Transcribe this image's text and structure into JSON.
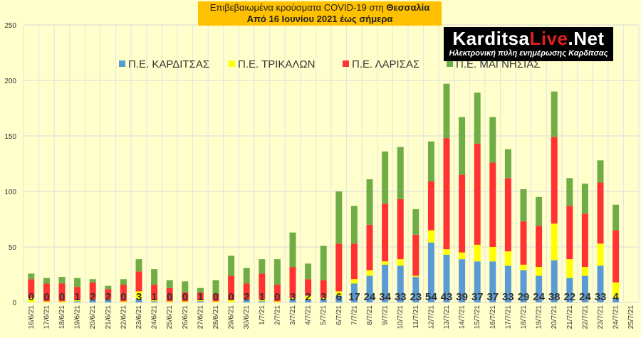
{
  "header": {
    "title_prefix": "Επιβεβαιωμένα κρούσματα COVID-19 στη ",
    "title_region": "Θεσσαλία",
    "subtitle": "Από 16 Ιουνίου 2021 έως σήμερα"
  },
  "logo": {
    "brand_part1": "Karditsa",
    "brand_part2": "Live",
    "brand_part3": ".Net",
    "tagline": "Ηλεκτρονική πύλη ενημέρωσης Καρδίτσας"
  },
  "chart_data": {
    "type": "bar",
    "stacked": true,
    "ylim": [
      0,
      250
    ],
    "yticks": [
      0,
      50,
      100,
      150,
      200,
      250
    ],
    "grid": true,
    "legend_position": "top",
    "categories": [
      "16/6/21",
      "17/6/21",
      "18/6/21",
      "19/6/21",
      "20/6/21",
      "21/6/21",
      "22/6/21",
      "23/6/21",
      "24/6/21",
      "25/6/21",
      "26/6/21",
      "27/6/21",
      "28/6/21",
      "29/6/21",
      "30/6/21",
      "1/7/21",
      "2/7/21",
      "3/7/21",
      "4/7/21",
      "5/7/21",
      "6/7/21",
      "7/7/21",
      "8/7/21",
      "9/7/21",
      "10/7/21",
      "11/7/21",
      "12/7/21",
      "13/7/21",
      "14/7/21",
      "15/7/21",
      "16/7/21",
      "17/7/21",
      "18/7/21",
      "19/7/21",
      "20/7/21",
      "21/7/21",
      "22/7/21",
      "23/7/21",
      "24/7/21",
      "25/7/21"
    ],
    "series": [
      {
        "name": "Π.Ε. ΚΑΡΔΙΤΣΑΣ",
        "color": "#5B9BD5",
        "values": [
          0,
          0,
          0,
          1,
          2,
          2,
          0,
          3,
          1,
          0,
          0,
          1,
          0,
          0,
          2,
          1,
          0,
          3,
          2,
          3,
          6,
          17,
          24,
          34,
          33,
          23,
          54,
          43,
          39,
          37,
          37,
          33,
          29,
          24,
          38,
          22,
          24,
          33,
          4,
          0
        ]
      },
      {
        "name": "Π.Ε. ΤΡΙΚΑΛΩΝ",
        "color": "#FFFF00",
        "values": [
          4,
          1,
          1,
          1,
          1,
          1,
          1,
          7,
          1,
          1,
          1,
          1,
          1,
          2,
          1,
          2,
          1,
          1,
          4,
          1,
          4,
          4,
          5,
          3,
          6,
          1,
          11,
          5,
          6,
          15,
          13,
          13,
          5,
          8,
          33,
          17,
          8,
          20,
          14,
          0
        ]
      },
      {
        "name": "Π.Ε. ΛΑΡΙΣΑΣ",
        "color": "#FF3333",
        "values": [
          17,
          16,
          16,
          12,
          15,
          9,
          15,
          18,
          14,
          12,
          8,
          7,
          7,
          22,
          14,
          23,
          15,
          28,
          15,
          16,
          43,
          32,
          41,
          52,
          54,
          37,
          44,
          100,
          70,
          91,
          76,
          66,
          39,
          37,
          78,
          48,
          48,
          55,
          47,
          0
        ]
      },
      {
        "name": "Π.Ε. ΜΑΓΝΗΣΙΑΣ",
        "color": "#70AD47",
        "values": [
          5,
          5,
          6,
          8,
          3,
          3,
          5,
          11,
          14,
          7,
          10,
          4,
          12,
          18,
          14,
          13,
          23,
          31,
          14,
          31,
          47,
          34,
          41,
          47,
          47,
          23,
          36,
          49,
          52,
          46,
          41,
          26,
          29,
          26,
          41,
          25,
          27,
          20,
          23,
          0
        ]
      }
    ],
    "data_labels": [
      "0",
      "0",
      "0",
      "1",
      "2",
      "2",
      "0",
      "3",
      "1",
      "0",
      "0",
      "1",
      "0",
      "0",
      "2",
      "1",
      "0",
      "3",
      "2",
      "3",
      "6",
      "17",
      "24",
      "34",
      "33",
      "23",
      "54",
      "43",
      "39",
      "37",
      "37",
      "33",
      "29",
      "24",
      "38",
      "22",
      "24",
      "33",
      "4",
      ""
    ]
  }
}
